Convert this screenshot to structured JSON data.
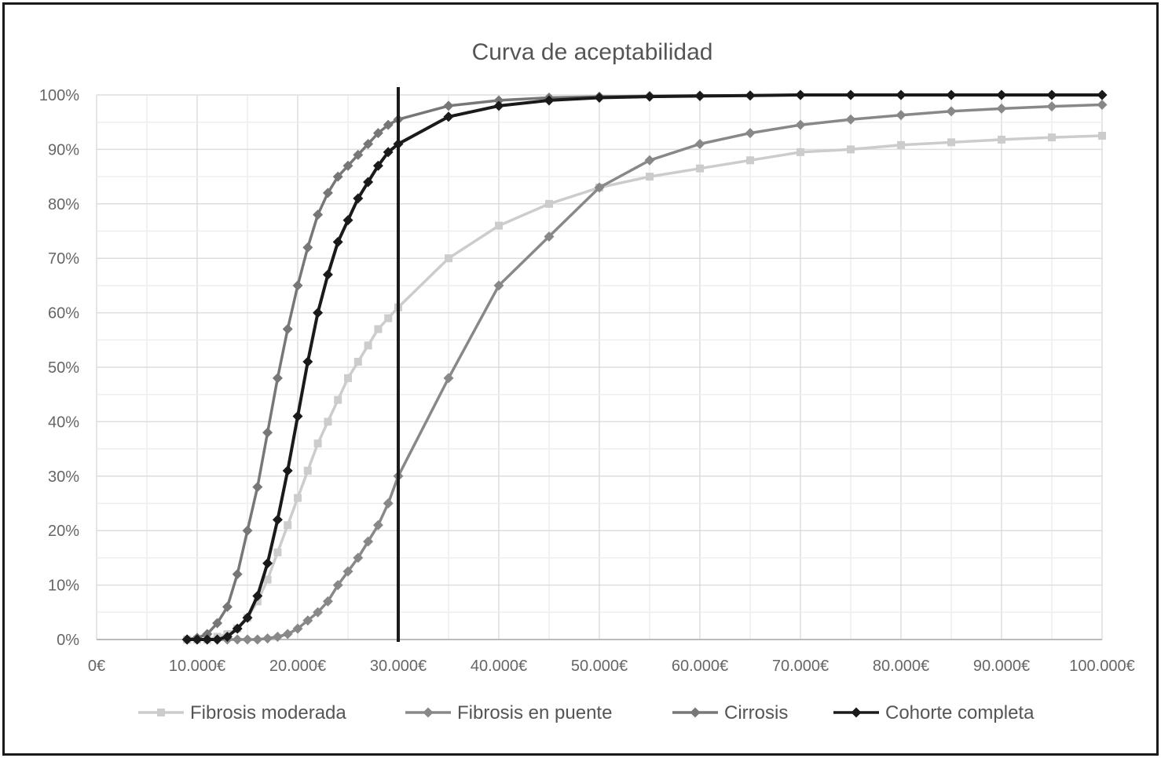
{
  "chart_data": {
    "type": "line",
    "title": "Curva de aceptabilidad",
    "xlabel": "",
    "ylabel": "",
    "xlim": [
      0,
      100000
    ],
    "ylim": [
      0,
      100
    ],
    "grid": true,
    "legend_position": "bottom",
    "x_tick_labels": [
      "0€",
      "10.000€",
      "20.000€",
      "30.000€",
      "40.000€",
      "50.000€",
      "60.000€",
      "70.000€",
      "80.000€",
      "90.000€",
      "100.000€"
    ],
    "y_tick_labels": [
      "0%",
      "10%",
      "20%",
      "30%",
      "40%",
      "50%",
      "60%",
      "70%",
      "80%",
      "90%",
      "100%"
    ],
    "threshold_x": 30000,
    "series": [
      {
        "name": "Fibrosis moderada",
        "color": "#cccccc",
        "marker": "square",
        "x": [
          9000,
          10000,
          11000,
          12000,
          13000,
          14000,
          15000,
          16000,
          17000,
          18000,
          19000,
          20000,
          21000,
          22000,
          23000,
          24000,
          25000,
          26000,
          27000,
          28000,
          29000,
          30000,
          35000,
          40000,
          45000,
          50000,
          55000,
          60000,
          65000,
          70000,
          75000,
          80000,
          85000,
          90000,
          95000,
          100000
        ],
        "y": [
          0,
          0,
          0,
          0.5,
          1,
          2,
          4,
          7,
          11,
          16,
          21,
          26,
          31,
          36,
          40,
          44,
          48,
          51,
          54,
          57,
          59,
          61,
          70,
          76,
          80,
          83,
          85,
          86.5,
          88,
          89.5,
          90,
          90.8,
          91.3,
          91.8,
          92.2,
          92.5
        ]
      },
      {
        "name": "Fibrosis en puente",
        "color": "#888888",
        "marker": "diamond",
        "x": [
          9000,
          10000,
          11000,
          12000,
          13000,
          14000,
          15000,
          16000,
          17000,
          18000,
          19000,
          20000,
          21000,
          22000,
          23000,
          24000,
          25000,
          26000,
          27000,
          28000,
          29000,
          30000,
          35000,
          40000,
          45000,
          50000,
          55000,
          60000,
          65000,
          70000,
          75000,
          80000,
          85000,
          90000,
          95000,
          100000
        ],
        "y": [
          0,
          0,
          0,
          0,
          0,
          0,
          0,
          0,
          0.2,
          0.5,
          1,
          2,
          3.5,
          5,
          7,
          10,
          12.5,
          15,
          18,
          21,
          25,
          30,
          48,
          65,
          74,
          83,
          88,
          91,
          93,
          94.5,
          95.5,
          96.3,
          97,
          97.5,
          97.9,
          98.2
        ]
      },
      {
        "name": "Cirrosis",
        "color": "#777777",
        "marker": "diamond",
        "x": [
          9000,
          10000,
          11000,
          12000,
          13000,
          14000,
          15000,
          16000,
          17000,
          18000,
          19000,
          20000,
          21000,
          22000,
          23000,
          24000,
          25000,
          26000,
          27000,
          28000,
          29000,
          30000,
          35000,
          40000,
          45000,
          50000,
          55000,
          60000,
          65000,
          70000,
          75000,
          80000,
          85000,
          90000,
          95000,
          100000
        ],
        "y": [
          0,
          0.3,
          1,
          3,
          6,
          12,
          20,
          28,
          38,
          48,
          57,
          65,
          72,
          78,
          82,
          85,
          87,
          89,
          91,
          93,
          94.5,
          95.5,
          98,
          99,
          99.5,
          99.7,
          99.8,
          99.9,
          99.9,
          100,
          100,
          100,
          100,
          100,
          100,
          100
        ]
      },
      {
        "name": "Cohorte completa",
        "color": "#1a1a1a",
        "marker": "diamond",
        "x": [
          9000,
          10000,
          11000,
          12000,
          13000,
          14000,
          15000,
          16000,
          17000,
          18000,
          19000,
          20000,
          21000,
          22000,
          23000,
          24000,
          25000,
          26000,
          27000,
          28000,
          29000,
          30000,
          35000,
          40000,
          45000,
          50000,
          55000,
          60000,
          65000,
          70000,
          75000,
          80000,
          85000,
          90000,
          95000,
          100000
        ],
        "y": [
          0,
          0,
          0,
          0,
          0.5,
          2,
          4,
          8,
          14,
          22,
          31,
          41,
          51,
          60,
          67,
          73,
          77,
          81,
          84,
          87,
          89.5,
          91,
          96,
          98,
          99,
          99.5,
          99.7,
          99.8,
          99.9,
          100,
          100,
          100,
          100,
          100,
          100,
          100
        ]
      }
    ]
  }
}
